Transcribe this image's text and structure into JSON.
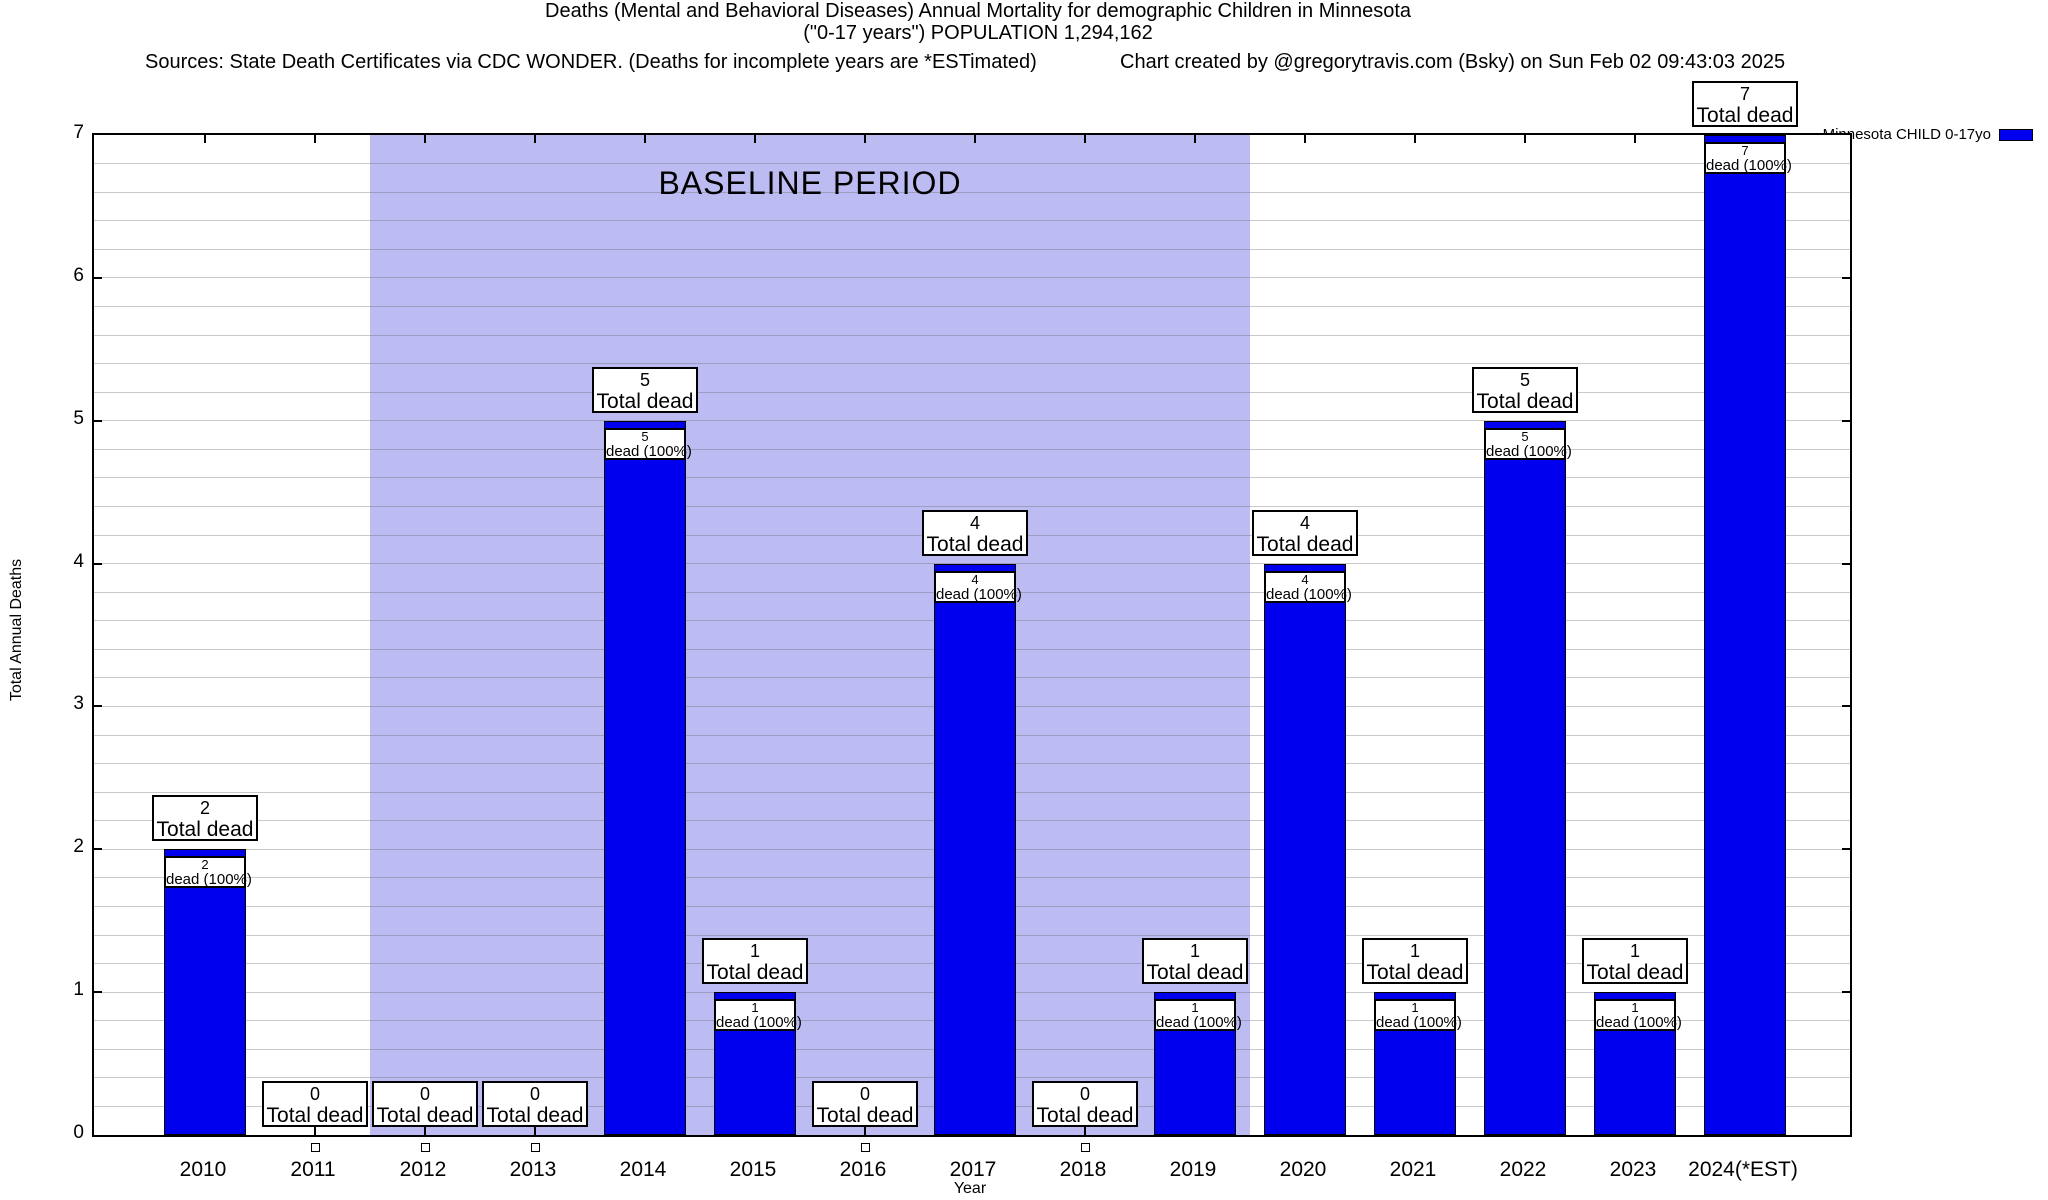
{
  "header": {
    "title_line1": "Deaths (Mental and Behavioral Diseases) Annual Mortality for demographic Children in Minnesota",
    "title_line2": "(\"0-17 years\") POPULATION 1,294,162",
    "sources_line": "Sources: State Death Certificates via CDC WONDER. (Deaths for incomplete years are *ESTimated)",
    "credit_line": "Chart created by @gregorytravis.com (Bsky) on Sun Feb 02 09:43:03 2025"
  },
  "legend": {
    "label": "Minnesota CHILD 0-17yo",
    "swatch_color": "#0000ee"
  },
  "chart_data": {
    "type": "bar",
    "title": "Deaths (Mental and Behavioral Diseases) Annual Mortality for demographic Children in Minnesota",
    "subtitle": "(\"0-17 years\") POPULATION 1,294,162",
    "xlabel": "Year",
    "ylabel": "Total Annual Deaths",
    "ylim": [
      0,
      7
    ],
    "y_ticks": [
      0,
      1,
      2,
      3,
      4,
      5,
      6,
      7
    ],
    "minor_grid_step": 0.2,
    "grid": true,
    "legend_position": "top-right",
    "series_name": "Minnesota CHILD 0-17yo",
    "bar_color": "#0000ee",
    "categories": [
      "2010",
      "2011",
      "2012",
      "2013",
      "2014",
      "2015",
      "2016",
      "2017",
      "2018",
      "2019",
      "2020",
      "2021",
      "2022",
      "2023",
      "2024(*EST)"
    ],
    "values": [
      2,
      0,
      0,
      0,
      5,
      1,
      0,
      4,
      0,
      1,
      4,
      1,
      5,
      1,
      7
    ],
    "annotations": {
      "total_label": "Total dead",
      "inner_label": "dead (100%)"
    },
    "baseline": {
      "label": "BASELINE PERIOD",
      "from_category": "2012",
      "to_category": "2019",
      "fill_color": "#bcbcf2"
    }
  }
}
